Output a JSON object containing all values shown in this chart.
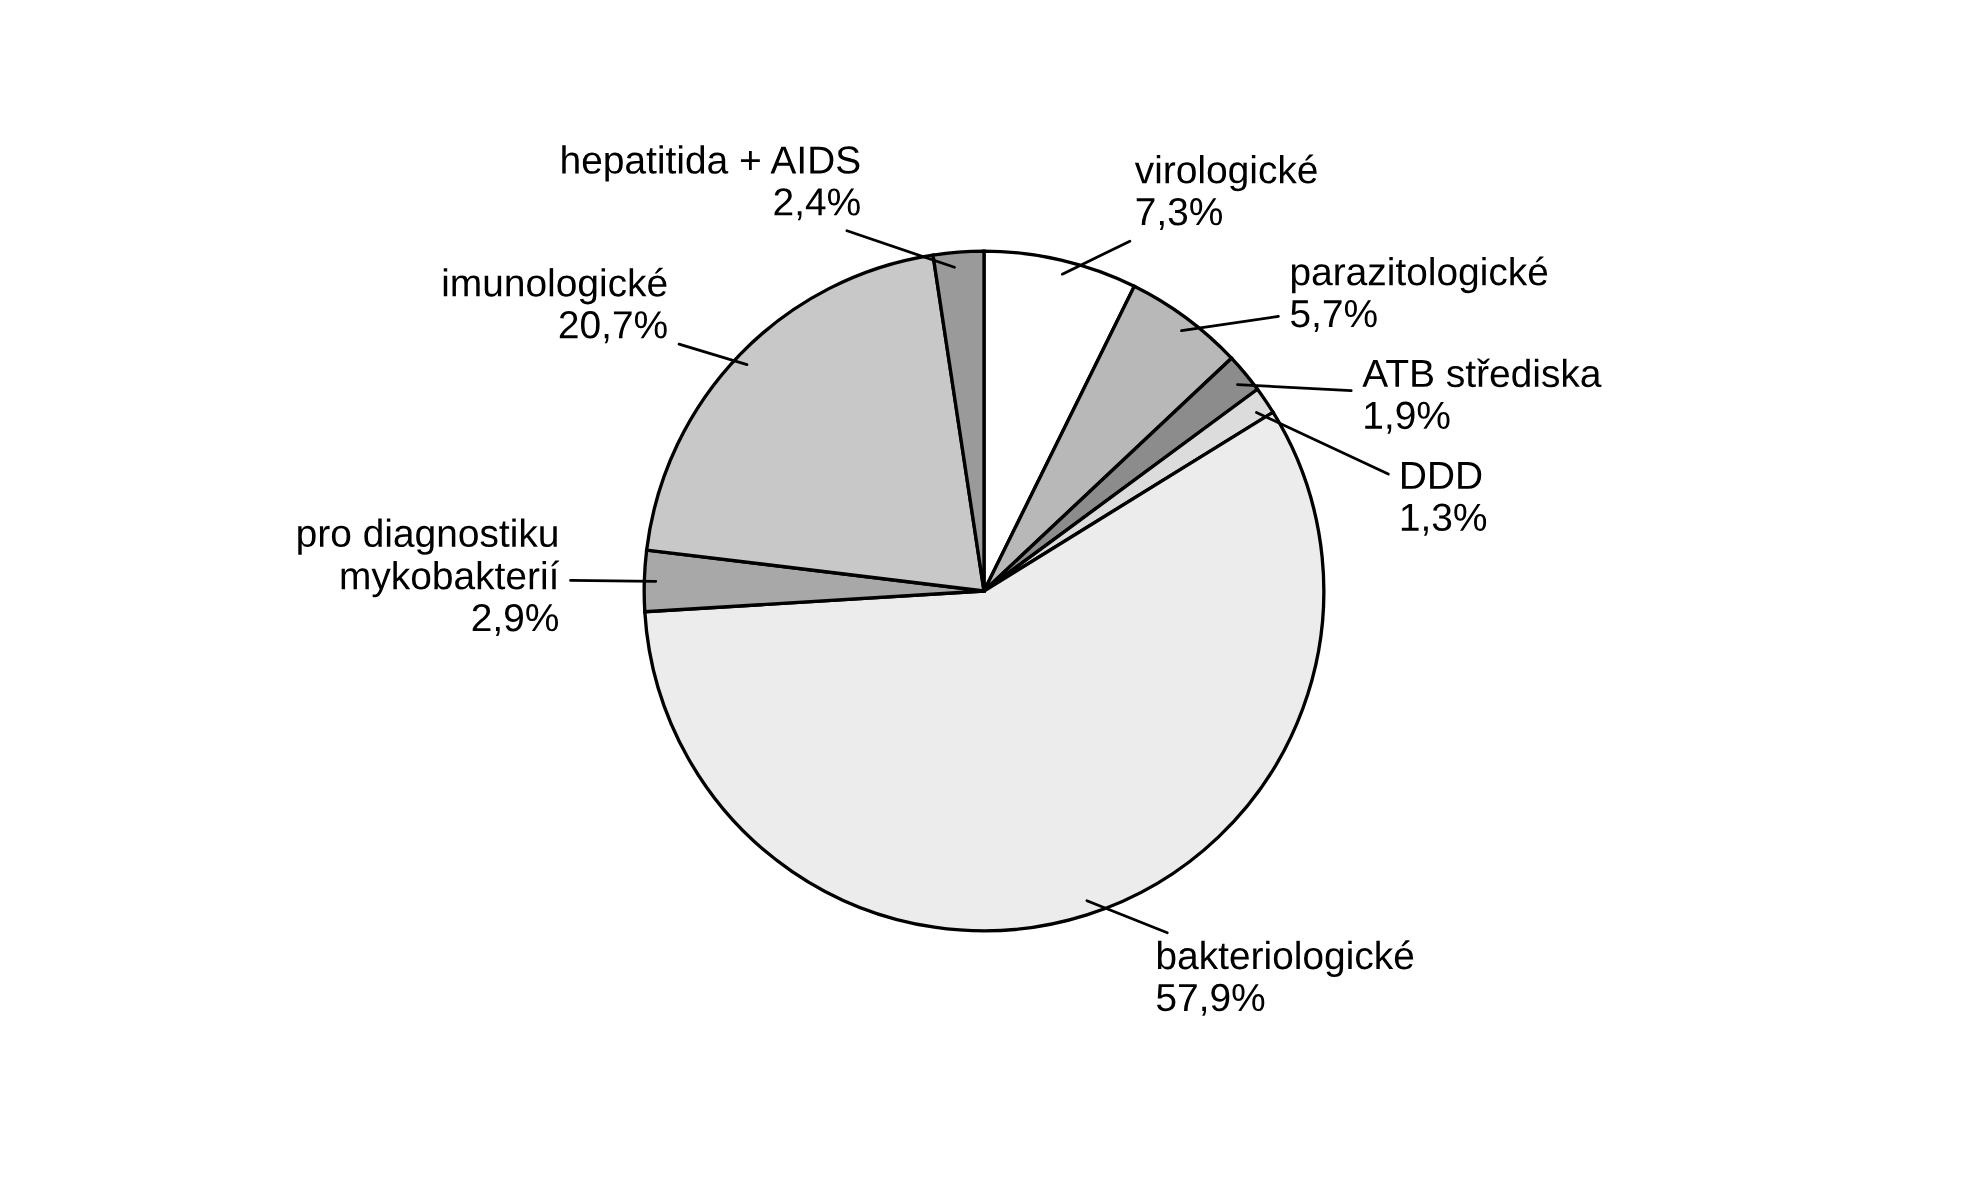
{
  "chart_data": {
    "type": "pie",
    "categories": [
      "virologické",
      "parazitologické",
      "ATB střediska",
      "DDD",
      "bakteriologické",
      "pro diagnostiku\nmykobakterií",
      "imunologické",
      "hepatitida + AIDS"
    ],
    "values": [
      7.3,
      5.7,
      1.9,
      1.3,
      57.9,
      2.9,
      20.7,
      2.4
    ],
    "value_labels": [
      "7,3%",
      "5,7%",
      "1,9%",
      "1,3%",
      "57,9%",
      "2,9%",
      "20,7%",
      "2,4%"
    ],
    "colors": [
      "#ffffff",
      "#b8b8b8",
      "#8c8c8c",
      "#dcdcdc",
      "#ececec",
      "#a8a8a8",
      "#c8c8c8",
      "#9a9a9a"
    ]
  }
}
